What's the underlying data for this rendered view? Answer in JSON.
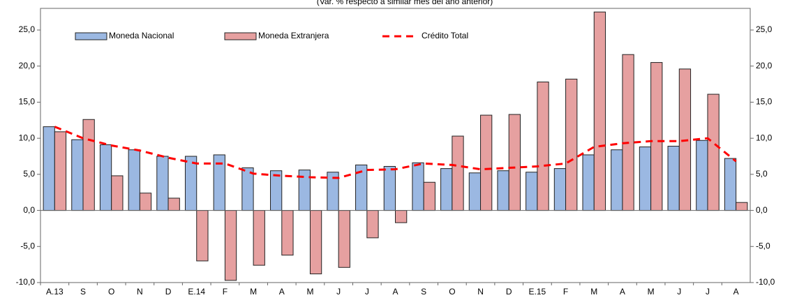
{
  "chart_data": {
    "type": "bar",
    "subtitle": "(Var. % respecto a similar mes del año anterior)",
    "categories": [
      "A.13",
      "S",
      "O",
      "N",
      "D",
      "E.14",
      "F",
      "M",
      "A",
      "M",
      "J",
      "J",
      "A",
      "S",
      "O",
      "N",
      "D",
      "E.15",
      "F",
      "M",
      "A",
      "M",
      "J",
      "J",
      "A"
    ],
    "series": [
      {
        "name": "Moneda Nacional",
        "type": "bar",
        "color": "#9bb8e2",
        "values": [
          11.6,
          9.8,
          9.1,
          8.4,
          7.5,
          7.5,
          7.7,
          5.9,
          5.5,
          5.6,
          5.3,
          6.3,
          6.1,
          6.6,
          5.8,
          5.2,
          5.5,
          5.3,
          5.8,
          7.7,
          8.4,
          8.8,
          8.9,
          9.7,
          7.2
        ]
      },
      {
        "name": "Moneda Extranjera",
        "type": "bar",
        "color": "#e6a0a0",
        "values": [
          10.9,
          12.6,
          4.8,
          2.4,
          1.7,
          -7.0,
          -9.7,
          -7.6,
          -6.2,
          -8.8,
          -7.9,
          -3.8,
          -1.7,
          3.9,
          10.3,
          13.2,
          13.3,
          17.8,
          18.2,
          27.5,
          21.6,
          20.5,
          19.6,
          16.1,
          1.1
        ]
      },
      {
        "name": "Crédito Total",
        "type": "line",
        "color": "#ff0000",
        "values": [
          11.6,
          10.0,
          9.0,
          8.3,
          7.3,
          6.5,
          6.5,
          5.1,
          4.8,
          4.6,
          4.5,
          5.6,
          5.7,
          6.5,
          6.3,
          5.7,
          5.9,
          6.1,
          6.5,
          8.8,
          9.3,
          9.6,
          9.6,
          10.0,
          6.8
        ]
      }
    ],
    "ylim": [
      -10,
      28
    ],
    "yticks": [
      {
        "value": -10,
        "label": "-10,0"
      },
      {
        "value": -5,
        "label": "-5,0"
      },
      {
        "value": 0,
        "label": "0,0"
      },
      {
        "value": 5,
        "label": "5,0"
      },
      {
        "value": 10,
        "label": "10,0"
      },
      {
        "value": 15,
        "label": "15,0"
      },
      {
        "value": 20,
        "label": "20,0"
      },
      {
        "value": 25,
        "label": "25,0"
      }
    ],
    "y2lim": [
      -10,
      28
    ],
    "y2ticks": [
      {
        "value": -10,
        "label": "-10,0"
      },
      {
        "value": -5,
        "label": "-5,0"
      },
      {
        "value": 0,
        "label": "0,0"
      },
      {
        "value": 5,
        "label": "5,0"
      },
      {
        "value": 10,
        "label": "10,0"
      },
      {
        "value": 15,
        "label": "15,0"
      },
      {
        "value": 20,
        "label": "20,0"
      },
      {
        "value": 25,
        "label": "25,0"
      }
    ],
    "legend": "top-left"
  }
}
